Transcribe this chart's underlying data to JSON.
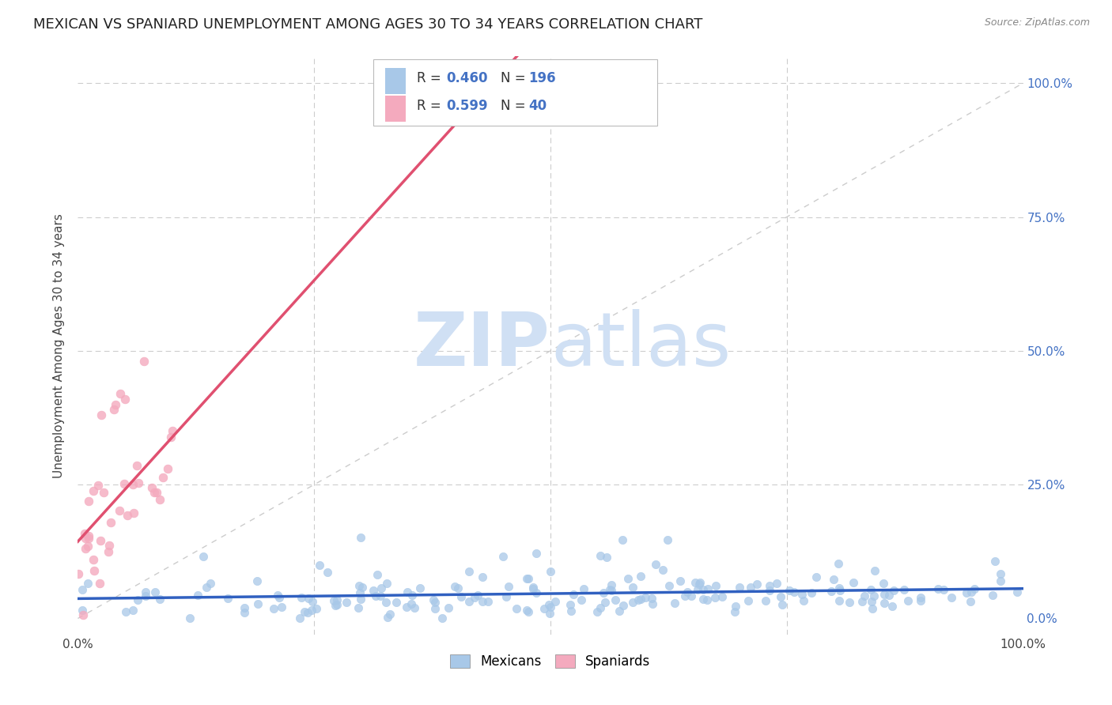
{
  "title": "MEXICAN VS SPANIARD UNEMPLOYMENT AMONG AGES 30 TO 34 YEARS CORRELATION CHART",
  "source": "Source: ZipAtlas.com",
  "ylabel": "Unemployment Among Ages 30 to 34 years",
  "xlim": [
    0,
    1
  ],
  "ylim": [
    -0.03,
    1.05
  ],
  "grid_color": "#cccccc",
  "background_color": "#ffffff",
  "mexican_color": "#a8c8e8",
  "spaniard_color": "#f4aabe",
  "mexican_line_color": "#3060c0",
  "spaniard_line_color": "#e05070",
  "diagonal_color": "#cccccc",
  "R_mexican": 0.46,
  "N_mexican": 196,
  "R_spaniard": 0.599,
  "N_spaniard": 40,
  "legend_labels": [
    "Mexicans",
    "Spaniards"
  ],
  "title_fontsize": 13,
  "axis_label_fontsize": 11,
  "tick_fontsize": 11,
  "watermark_color": "#d0e0f4",
  "right_tick_color": "#4472c4",
  "legend_text_color": "#4472c4",
  "legend_r_color": "#333333"
}
